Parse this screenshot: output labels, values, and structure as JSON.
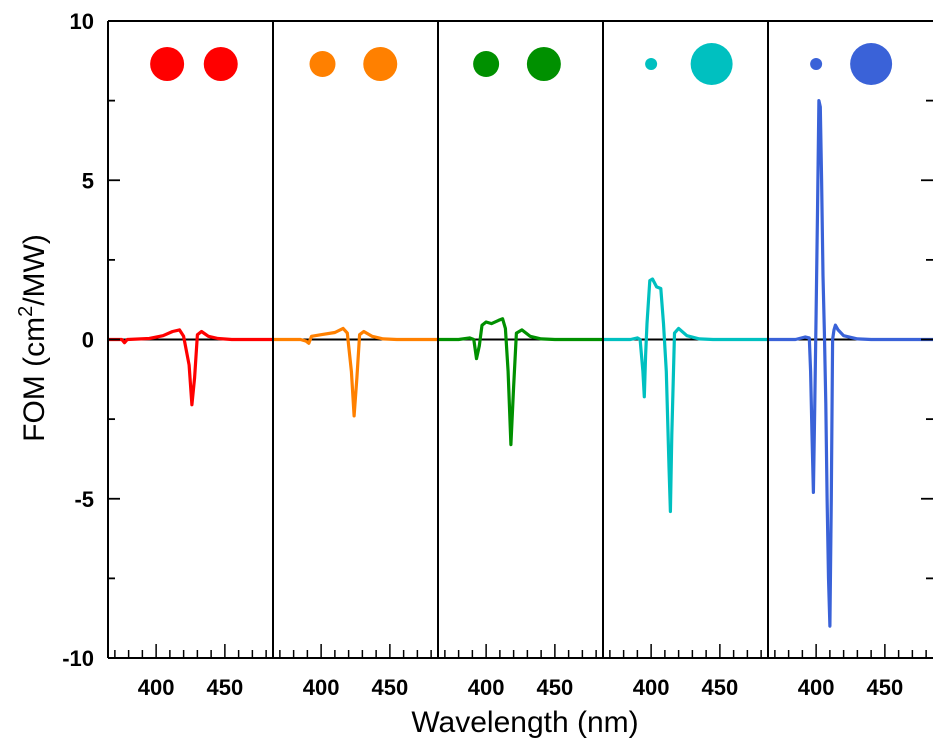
{
  "chart_data": {
    "type": "line",
    "xlabel": "Wavelength (nm)",
    "ylabel": {
      "prefix": "FOM (cm",
      "sup": "2",
      "suffix": "/MW)"
    },
    "ylim": [
      -10,
      10
    ],
    "xlim": [
      365,
      485
    ],
    "grid": false,
    "legend": "none",
    "y_ticks": [
      -10,
      -5,
      0,
      5,
      10
    ],
    "x_tick_labels": [
      400,
      450
    ],
    "x_minor_tick_step": 10,
    "panels": [
      {
        "color": "#ff0000",
        "markers": [
          {
            "x": 408,
            "size": "large"
          },
          {
            "x": 447,
            "size": "large"
          }
        ],
        "points": [
          [
            365,
            0
          ],
          [
            375,
            0
          ],
          [
            377,
            -0.1
          ],
          [
            379,
            0
          ],
          [
            395,
            0.03
          ],
          [
            405,
            0.12
          ],
          [
            412,
            0.25
          ],
          [
            417,
            0.3
          ],
          [
            420,
            0.1
          ],
          [
            424,
            -0.8
          ],
          [
            426,
            -2.05
          ],
          [
            428,
            -1.2
          ],
          [
            430,
            0.15
          ],
          [
            433,
            0.25
          ],
          [
            438,
            0.1
          ],
          [
            445,
            0.03
          ],
          [
            455,
            0
          ],
          [
            485,
            0
          ]
        ]
      },
      {
        "color": "#ff8000",
        "markers": [
          {
            "x": 401,
            "size": "small"
          },
          {
            "x": 443,
            "size": "large"
          }
        ],
        "points": [
          [
            365,
            0
          ],
          [
            385,
            0
          ],
          [
            389,
            -0.05
          ],
          [
            391,
            -0.12
          ],
          [
            393,
            0.1
          ],
          [
            400,
            0.15
          ],
          [
            410,
            0.22
          ],
          [
            416,
            0.35
          ],
          [
            419,
            0.2
          ],
          [
            422,
            -1
          ],
          [
            424,
            -2.4
          ],
          [
            426,
            -1.2
          ],
          [
            428,
            0.15
          ],
          [
            431,
            0.25
          ],
          [
            437,
            0.1
          ],
          [
            445,
            0.02
          ],
          [
            455,
            0
          ],
          [
            485,
            0
          ]
        ]
      },
      {
        "color": "#009000",
        "markers": [
          {
            "x": 400,
            "size": "small"
          },
          {
            "x": 442,
            "size": "large"
          }
        ],
        "points": [
          [
            365,
            0
          ],
          [
            380,
            0
          ],
          [
            388,
            0.05
          ],
          [
            391,
            0
          ],
          [
            393,
            -0.6
          ],
          [
            395,
            -0.2
          ],
          [
            397,
            0.45
          ],
          [
            400,
            0.55
          ],
          [
            404,
            0.5
          ],
          [
            409,
            0.6
          ],
          [
            412,
            0.65
          ],
          [
            414,
            0.35
          ],
          [
            416,
            -1
          ],
          [
            418,
            -3.3
          ],
          [
            420,
            -1.5
          ],
          [
            422,
            0.2
          ],
          [
            426,
            0.3
          ],
          [
            432,
            0.1
          ],
          [
            440,
            0.02
          ],
          [
            450,
            0
          ],
          [
            485,
            0
          ]
        ]
      },
      {
        "color": "#00c0c0",
        "markers": [
          {
            "x": 400,
            "size": "tiny"
          },
          {
            "x": 444,
            "size": "xlarge"
          }
        ],
        "points": [
          [
            365,
            0
          ],
          [
            385,
            0
          ],
          [
            390,
            0.05
          ],
          [
            392,
            0
          ],
          [
            394,
            -1
          ],
          [
            395,
            -1.8
          ],
          [
            396,
            -0.5
          ],
          [
            397,
            0.5
          ],
          [
            399,
            1.85
          ],
          [
            401,
            1.9
          ],
          [
            404,
            1.65
          ],
          [
            407,
            1.6
          ],
          [
            409,
            0.5
          ],
          [
            411,
            -1
          ],
          [
            413,
            -4
          ],
          [
            414,
            -5.4
          ],
          [
            415,
            -3
          ],
          [
            417,
            0.2
          ],
          [
            420,
            0.35
          ],
          [
            426,
            0.12
          ],
          [
            435,
            0.02
          ],
          [
            445,
            0
          ],
          [
            485,
            0
          ]
        ]
      },
      {
        "color": "#3a62d8",
        "markers": [
          {
            "x": 400,
            "size": "tiny"
          },
          {
            "x": 440,
            "size": "xlarge"
          }
        ],
        "points": [
          [
            365,
            0
          ],
          [
            385,
            0
          ],
          [
            392,
            0.08
          ],
          [
            395,
            0.05
          ],
          [
            396,
            -1
          ],
          [
            397,
            -3
          ],
          [
            398,
            -4.8
          ],
          [
            399,
            -2
          ],
          [
            400,
            0.8
          ],
          [
            401,
            4
          ],
          [
            402,
            7.5
          ],
          [
            403,
            7.3
          ],
          [
            404,
            5
          ],
          [
            405,
            2
          ],
          [
            406,
            0.2
          ],
          [
            407,
            -2
          ],
          [
            408,
            -5
          ],
          [
            409,
            -7.5
          ],
          [
            410,
            -9
          ],
          [
            411,
            -5
          ],
          [
            412,
            0
          ],
          [
            413,
            0.3
          ],
          [
            414,
            0.45
          ],
          [
            416,
            0.3
          ],
          [
            420,
            0.12
          ],
          [
            430,
            0.02
          ],
          [
            440,
            0
          ],
          [
            485,
            0
          ]
        ]
      }
    ]
  }
}
